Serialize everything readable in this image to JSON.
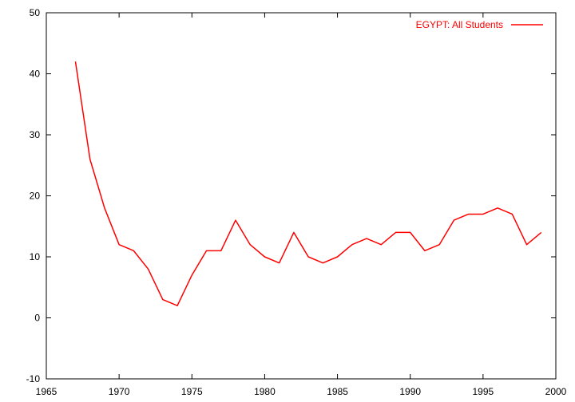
{
  "chart_data": {
    "type": "line",
    "xlim": [
      1965,
      2000
    ],
    "ylim": [
      -10,
      50
    ],
    "x_ticks": [
      1965,
      1970,
      1975,
      1980,
      1985,
      1990,
      1995,
      2000
    ],
    "y_ticks": [
      -10,
      0,
      10,
      20,
      30,
      40,
      50
    ],
    "x_tick_labels": [
      "1965",
      "1970",
      "1975",
      "1980",
      "1985",
      "1990",
      "1995",
      "2000"
    ],
    "y_tick_labels": [
      "-10",
      "0",
      "10",
      "20",
      "30",
      "40",
      "50"
    ],
    "grid": false,
    "legend_position": "top-right",
    "series": [
      {
        "name": "EGYPT: All Students",
        "color": "#ff0000",
        "x": [
          1967,
          1968,
          1969,
          1970,
          1971,
          1972,
          1973,
          1974,
          1975,
          1976,
          1977,
          1978,
          1979,
          1980,
          1981,
          1982,
          1983,
          1984,
          1985,
          1986,
          1987,
          1988,
          1989,
          1990,
          1991,
          1992,
          1993,
          1994,
          1995,
          1996,
          1997,
          1998,
          1999
        ],
        "y": [
          42,
          26,
          18,
          12,
          11,
          8,
          3,
          2,
          7,
          11,
          11,
          16,
          12,
          10,
          9,
          14,
          10,
          9,
          10,
          12,
          13,
          12,
          14,
          14,
          11,
          12,
          16,
          17,
          17,
          18,
          17,
          12,
          14
        ]
      }
    ]
  }
}
